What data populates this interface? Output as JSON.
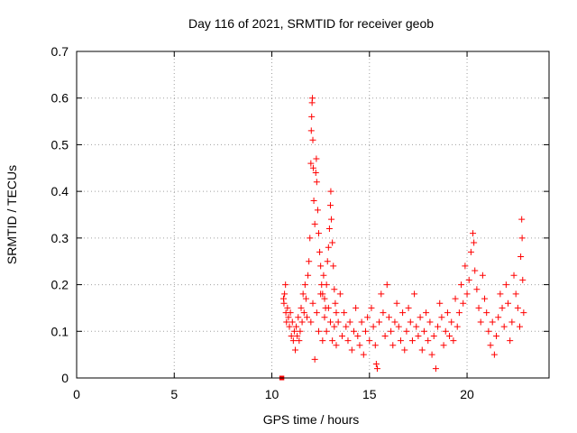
{
  "chart_data": {
    "type": "scatter",
    "title": "Day 116 of 2021, SRMTID for receiver geob",
    "xlabel": "GPS time / hours",
    "ylabel": "SRMTID / TECUs",
    "xlim": [
      0,
      24.2
    ],
    "ylim": [
      0,
      0.7
    ],
    "xticks": [
      0,
      5,
      10,
      15,
      20
    ],
    "yticks": [
      0,
      0.1,
      0.2,
      0.3,
      0.4,
      0.5,
      0.6,
      0.7
    ],
    "xtick_labels": [
      "0",
      "5",
      "10",
      "15",
      "20"
    ],
    "ytick_labels": [
      "0",
      "0.1",
      "0.2",
      "0.3",
      "0.4",
      "0.5",
      "0.6",
      "0.7"
    ],
    "grid": true,
    "marker": "+",
    "marker_color": "#ff0000",
    "series": [
      {
        "name": "SRMTID",
        "points": [
          [
            10.5,
            0.0
          ],
          [
            10.52,
            0.0
          ],
          [
            10.6,
            0.17
          ],
          [
            10.62,
            0.16
          ],
          [
            10.65,
            0.18
          ],
          [
            10.7,
            0.2
          ],
          [
            10.72,
            0.14
          ],
          [
            10.75,
            0.12
          ],
          [
            10.8,
            0.15
          ],
          [
            10.85,
            0.13
          ],
          [
            10.9,
            0.11
          ],
          [
            10.95,
            0.14
          ],
          [
            11.0,
            0.09
          ],
          [
            11.05,
            0.12
          ],
          [
            11.1,
            0.08
          ],
          [
            11.15,
            0.1
          ],
          [
            11.2,
            0.06
          ],
          [
            11.25,
            0.11
          ],
          [
            11.3,
            0.09
          ],
          [
            11.35,
            0.13
          ],
          [
            11.4,
            0.08
          ],
          [
            11.45,
            0.1
          ],
          [
            11.5,
            0.15
          ],
          [
            11.55,
            0.12
          ],
          [
            11.6,
            0.18
          ],
          [
            11.65,
            0.14
          ],
          [
            11.7,
            0.2
          ],
          [
            11.75,
            0.17
          ],
          [
            11.8,
            0.13
          ],
          [
            11.85,
            0.22
          ],
          [
            11.9,
            0.25
          ],
          [
            11.95,
            0.3
          ],
          [
            12.0,
            0.46
          ],
          [
            12.02,
            0.53
          ],
          [
            12.04,
            0.56
          ],
          [
            12.06,
            0.59
          ],
          [
            12.08,
            0.6
          ],
          [
            12.1,
            0.51
          ],
          [
            12.12,
            0.45
          ],
          [
            12.15,
            0.38
          ],
          [
            12.2,
            0.33
          ],
          [
            12.25,
            0.44
          ],
          [
            12.28,
            0.47
          ],
          [
            12.3,
            0.42
          ],
          [
            12.35,
            0.36
          ],
          [
            12.4,
            0.31
          ],
          [
            12.45,
            0.27
          ],
          [
            12.5,
            0.24
          ],
          [
            12.55,
            0.2
          ],
          [
            12.6,
            0.18
          ],
          [
            12.65,
            0.22
          ],
          [
            12.7,
            0.17
          ],
          [
            12.75,
            0.15
          ],
          [
            12.8,
            0.2
          ],
          [
            12.85,
            0.25
          ],
          [
            12.9,
            0.28
          ],
          [
            12.95,
            0.32
          ],
          [
            13.0,
            0.37
          ],
          [
            13.02,
            0.4
          ],
          [
            13.05,
            0.34
          ],
          [
            13.1,
            0.29
          ],
          [
            13.15,
            0.24
          ],
          [
            13.2,
            0.19
          ],
          [
            13.25,
            0.16
          ],
          [
            13.3,
            0.14
          ],
          [
            12.0,
            0.12
          ],
          [
            12.1,
            0.16
          ],
          [
            12.2,
            0.04
          ],
          [
            12.3,
            0.14
          ],
          [
            12.4,
            0.1
          ],
          [
            12.5,
            0.18
          ],
          [
            12.6,
            0.08
          ],
          [
            12.7,
            0.13
          ],
          [
            12.8,
            0.1
          ],
          [
            12.9,
            0.15
          ],
          [
            13.0,
            0.12
          ],
          [
            13.1,
            0.08
          ],
          [
            13.2,
            0.11
          ],
          [
            13.3,
            0.07
          ],
          [
            13.4,
            0.12
          ],
          [
            13.5,
            0.18
          ],
          [
            13.6,
            0.09
          ],
          [
            13.7,
            0.14
          ],
          [
            13.8,
            0.11
          ],
          [
            13.9,
            0.08
          ],
          [
            14.0,
            0.12
          ],
          [
            14.1,
            0.06
          ],
          [
            14.2,
            0.1
          ],
          [
            14.3,
            0.15
          ],
          [
            14.4,
            0.09
          ],
          [
            14.5,
            0.07
          ],
          [
            14.6,
            0.12
          ],
          [
            14.7,
            0.05
          ],
          [
            14.8,
            0.1
          ],
          [
            14.9,
            0.13
          ],
          [
            15.0,
            0.08
          ],
          [
            15.1,
            0.15
          ],
          [
            15.2,
            0.11
          ],
          [
            15.3,
            0.07
          ],
          [
            15.35,
            0.03
          ],
          [
            15.4,
            0.02
          ],
          [
            15.5,
            0.12
          ],
          [
            15.6,
            0.18
          ],
          [
            15.7,
            0.14
          ],
          [
            15.8,
            0.09
          ],
          [
            15.9,
            0.2
          ],
          [
            16.0,
            0.13
          ],
          [
            16.1,
            0.1
          ],
          [
            16.2,
            0.07
          ],
          [
            16.3,
            0.12
          ],
          [
            16.4,
            0.16
          ],
          [
            16.5,
            0.11
          ],
          [
            16.6,
            0.08
          ],
          [
            16.7,
            0.14
          ],
          [
            16.8,
            0.06
          ],
          [
            16.9,
            0.1
          ],
          [
            17.0,
            0.15
          ],
          [
            17.1,
            0.12
          ],
          [
            17.2,
            0.08
          ],
          [
            17.3,
            0.18
          ],
          [
            17.4,
            0.11
          ],
          [
            17.5,
            0.09
          ],
          [
            17.6,
            0.13
          ],
          [
            17.7,
            0.06
          ],
          [
            17.8,
            0.1
          ],
          [
            17.9,
            0.14
          ],
          [
            18.0,
            0.08
          ],
          [
            18.1,
            0.12
          ],
          [
            18.2,
            0.05
          ],
          [
            18.3,
            0.09
          ],
          [
            18.4,
            0.02
          ],
          [
            18.5,
            0.11
          ],
          [
            18.6,
            0.16
          ],
          [
            18.7,
            0.13
          ],
          [
            18.8,
            0.07
          ],
          [
            18.9,
            0.1
          ],
          [
            19.0,
            0.14
          ],
          [
            19.1,
            0.09
          ],
          [
            19.2,
            0.12
          ],
          [
            19.3,
            0.08
          ],
          [
            19.4,
            0.17
          ],
          [
            19.5,
            0.11
          ],
          [
            19.6,
            0.14
          ],
          [
            19.7,
            0.2
          ],
          [
            19.8,
            0.16
          ],
          [
            19.9,
            0.24
          ],
          [
            20.0,
            0.18
          ],
          [
            20.1,
            0.21
          ],
          [
            20.2,
            0.27
          ],
          [
            20.3,
            0.31
          ],
          [
            20.35,
            0.29
          ],
          [
            20.4,
            0.23
          ],
          [
            20.5,
            0.19
          ],
          [
            20.6,
            0.15
          ],
          [
            20.7,
            0.12
          ],
          [
            20.8,
            0.22
          ],
          [
            20.9,
            0.17
          ],
          [
            21.0,
            0.14
          ],
          [
            21.1,
            0.1
          ],
          [
            21.2,
            0.07
          ],
          [
            21.3,
            0.12
          ],
          [
            21.4,
            0.05
          ],
          [
            21.5,
            0.09
          ],
          [
            21.6,
            0.13
          ],
          [
            21.7,
            0.18
          ],
          [
            21.8,
            0.15
          ],
          [
            21.9,
            0.11
          ],
          [
            22.0,
            0.2
          ],
          [
            22.1,
            0.16
          ],
          [
            22.2,
            0.08
          ],
          [
            22.3,
            0.12
          ],
          [
            22.4,
            0.22
          ],
          [
            22.5,
            0.18
          ],
          [
            22.6,
            0.15
          ],
          [
            22.7,
            0.11
          ],
          [
            22.75,
            0.26
          ],
          [
            22.8,
            0.34
          ],
          [
            22.82,
            0.3
          ],
          [
            22.85,
            0.21
          ],
          [
            22.9,
            0.14
          ]
        ]
      }
    ]
  }
}
